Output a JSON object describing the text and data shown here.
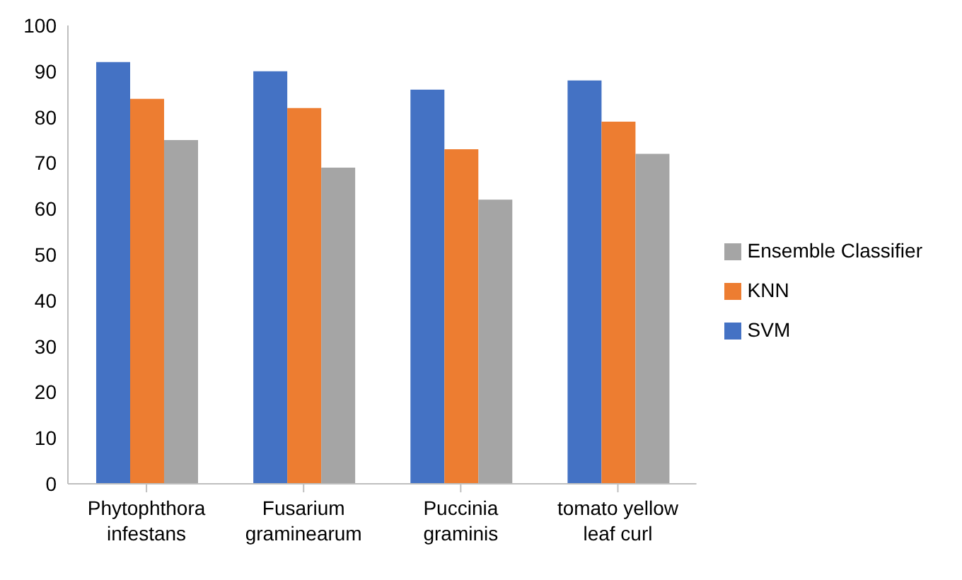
{
  "chart_data": {
    "type": "bar",
    "categories": [
      "Phytophthora infestans",
      "Fusarium graminearum",
      "Puccinia graminis",
      "tomato yellow leaf curl"
    ],
    "series": [
      {
        "name": "SVM",
        "color": "#4472c4",
        "values": [
          92,
          90,
          86,
          88
        ]
      },
      {
        "name": "KNN",
        "color": "#ed7d31",
        "values": [
          84,
          82,
          73,
          79
        ]
      },
      {
        "name": "Ensemble Classifier",
        "color": "#a5a5a5",
        "values": [
          75,
          69,
          62,
          72
        ]
      }
    ],
    "ylim": [
      0,
      100
    ],
    "yticks": [
      0,
      10,
      20,
      30,
      40,
      50,
      60,
      70,
      80,
      90,
      100
    ],
    "grid": false,
    "legend": "right"
  }
}
